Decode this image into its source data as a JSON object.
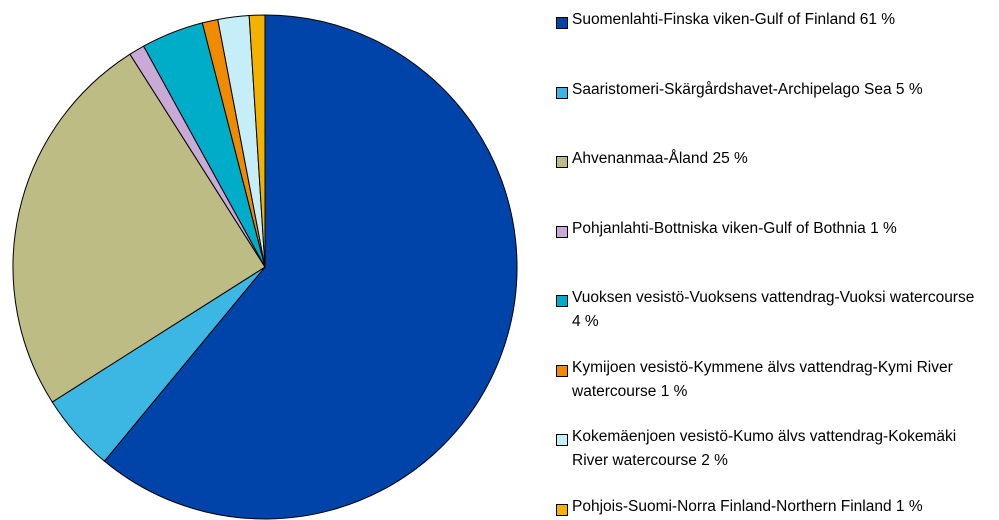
{
  "chart_data": {
    "type": "pie",
    "categories": [
      "Suomenlahti-Finska viken-Gulf of Finland 61 %",
      "Saaristomeri-Skärgårdshavet-Archipelago Sea 5 %",
      "Ahvenanmaa-Åland 25 %",
      "Pohjanlahti-Bottniska viken-Gulf of Bothnia 1 %",
      "Vuoksen vesistö-Vuoksens vattendrag-Vuoksi watercourse 4 %",
      "Kymijoen vesistö-Kymmene älvs vattendrag-Kymi River watercourse 1 %",
      "Kokemäenjoen vesistö-Kumo älvs vattendrag-Kokemäki River watercourse 2 %",
      "Pohjois-Suomi-Norra Finland-Northern Finland 1 %"
    ],
    "values": [
      61,
      5,
      25,
      1,
      4,
      1,
      2,
      1
    ],
    "colors": [
      "#0044aa",
      "#3cb6e2",
      "#bcbc84",
      "#c9a9d6",
      "#00adc9",
      "#f08a00",
      "#c6eef8",
      "#f2b200"
    ],
    "legend": "right"
  }
}
